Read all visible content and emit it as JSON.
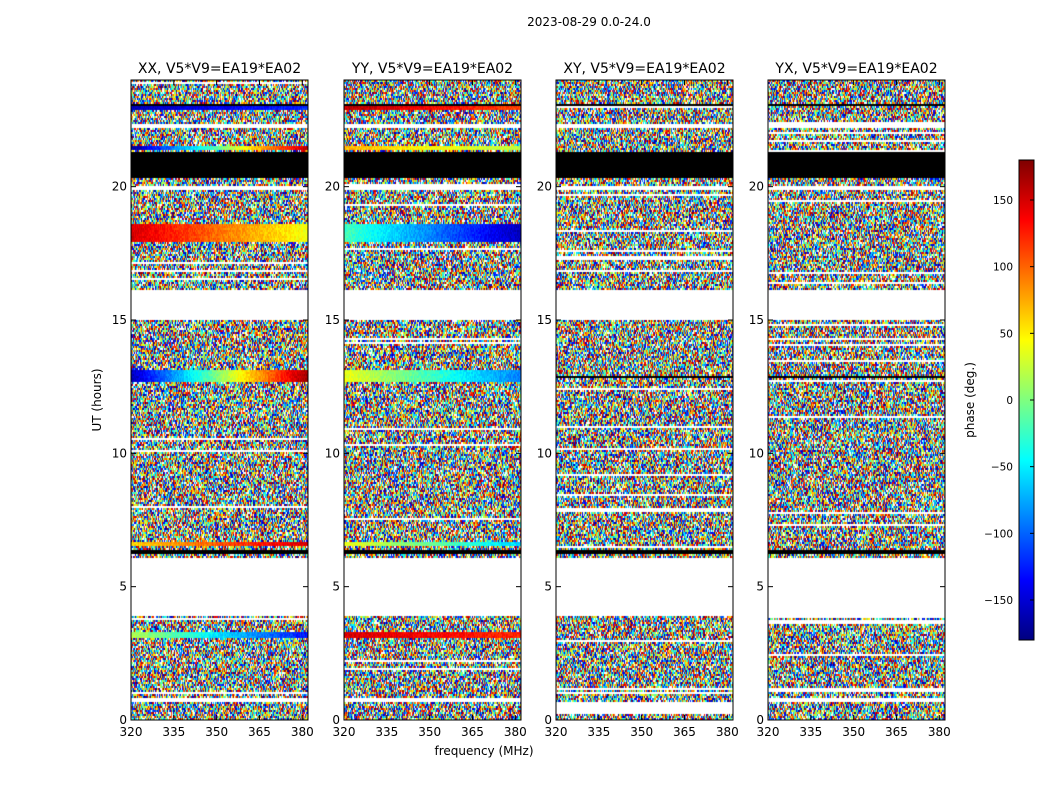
{
  "chart_data": {
    "type": "heatmap",
    "suptitle": "2023-08-29 0.0-24.0",
    "xlabel": "frequency (MHz)",
    "ylabel": "UT (hours)",
    "colorbar": {
      "label": "phase (deg.)",
      "range": [
        -180,
        180
      ],
      "ticks": [
        -150,
        -100,
        -50,
        0,
        50,
        100,
        150
      ],
      "colormap": "jet",
      "stops": [
        "#00007f",
        "#0000ff",
        "#007fff",
        "#00ffff",
        "#7fff7f",
        "#ffff00",
        "#ff7f00",
        "#ff0000",
        "#7f0000"
      ]
    },
    "x_range": [
      320,
      382
    ],
    "x_ticks": [
      320,
      335,
      350,
      365,
      380
    ],
    "y_range": [
      0,
      24
    ],
    "y_ticks": [
      0,
      5,
      10,
      15,
      20
    ],
    "flagged_color": "#000000",
    "panels": [
      {
        "title": "XX, V5*V9=EA19*EA02",
        "blank_bands": [
          [
            3.9,
            6.1
          ],
          [
            15.0,
            16.1
          ],
          [
            0.7,
            0.85
          ],
          [
            19.85,
            20.0
          ],
          [
            22.2,
            22.35
          ]
        ],
        "flagged_bands": [
          [
            6.2,
            6.35
          ],
          [
            20.3,
            21.3
          ],
          [
            23.0,
            23.1
          ]
        ],
        "coherent_bands": [
          {
            "from": 3.05,
            "to": 3.3,
            "phase_start": 20,
            "phase_end": -130
          },
          {
            "from": 6.5,
            "to": 6.7,
            "phase_start": 60,
            "phase_end": 150
          },
          {
            "from": 12.7,
            "to": 13.1,
            "phase_start": -160,
            "phase_end": 170
          },
          {
            "from": 17.95,
            "to": 18.6,
            "phase_start": 150,
            "phase_end": 40
          },
          {
            "from": 21.35,
            "to": 21.55,
            "phase_start": -170,
            "phase_end": 160
          },
          {
            "from": 22.9,
            "to": 23.05,
            "phase_start": -160,
            "phase_end": -120
          }
        ]
      },
      {
        "title": "YY, V5*V9=EA19*EA02",
        "blank_bands": [
          [
            3.9,
            6.1
          ],
          [
            15.0,
            16.1
          ],
          [
            0.7,
            0.85
          ],
          [
            19.85,
            20.0
          ],
          [
            22.2,
            22.35
          ]
        ],
        "flagged_bands": [
          [
            6.2,
            6.35
          ],
          [
            20.3,
            21.3
          ],
          [
            23.0,
            23.1
          ]
        ],
        "coherent_bands": [
          {
            "from": 3.05,
            "to": 3.3,
            "phase_start": 150,
            "phase_end": 120
          },
          {
            "from": 6.5,
            "to": 6.7,
            "phase_start": 40,
            "phase_end": -60
          },
          {
            "from": 12.7,
            "to": 13.1,
            "phase_start": 40,
            "phase_end": -90
          },
          {
            "from": 17.95,
            "to": 18.6,
            "phase_start": -20,
            "phase_end": -160
          },
          {
            "from": 21.35,
            "to": 21.55,
            "phase_start": 70,
            "phase_end": 20
          },
          {
            "from": 22.9,
            "to": 23.05,
            "phase_start": 160,
            "phase_end": 110
          }
        ]
      },
      {
        "title": "XY, V5*V9=EA19*EA02",
        "blank_bands": [
          [
            3.9,
            6.1
          ],
          [
            15.0,
            16.1
          ],
          [
            0.2,
            0.7
          ],
          [
            19.85,
            20.0
          ],
          [
            22.2,
            22.35
          ]
        ],
        "flagged_bands": [
          [
            6.2,
            6.35
          ],
          [
            20.3,
            21.3
          ],
          [
            12.8,
            12.9
          ],
          [
            23.0,
            23.1
          ]
        ],
        "coherent_bands": []
      },
      {
        "title": "YX, V5*V9=EA19*EA02",
        "blank_bands": [
          [
            3.9,
            6.1
          ],
          [
            15.0,
            16.1
          ],
          [
            0.7,
            0.85
          ],
          [
            19.85,
            20.0
          ],
          [
            22.2,
            22.35
          ]
        ],
        "flagged_bands": [
          [
            6.2,
            6.35
          ],
          [
            20.3,
            21.3
          ],
          [
            12.8,
            12.9
          ],
          [
            23.0,
            23.1
          ]
        ],
        "coherent_bands": []
      }
    ]
  }
}
